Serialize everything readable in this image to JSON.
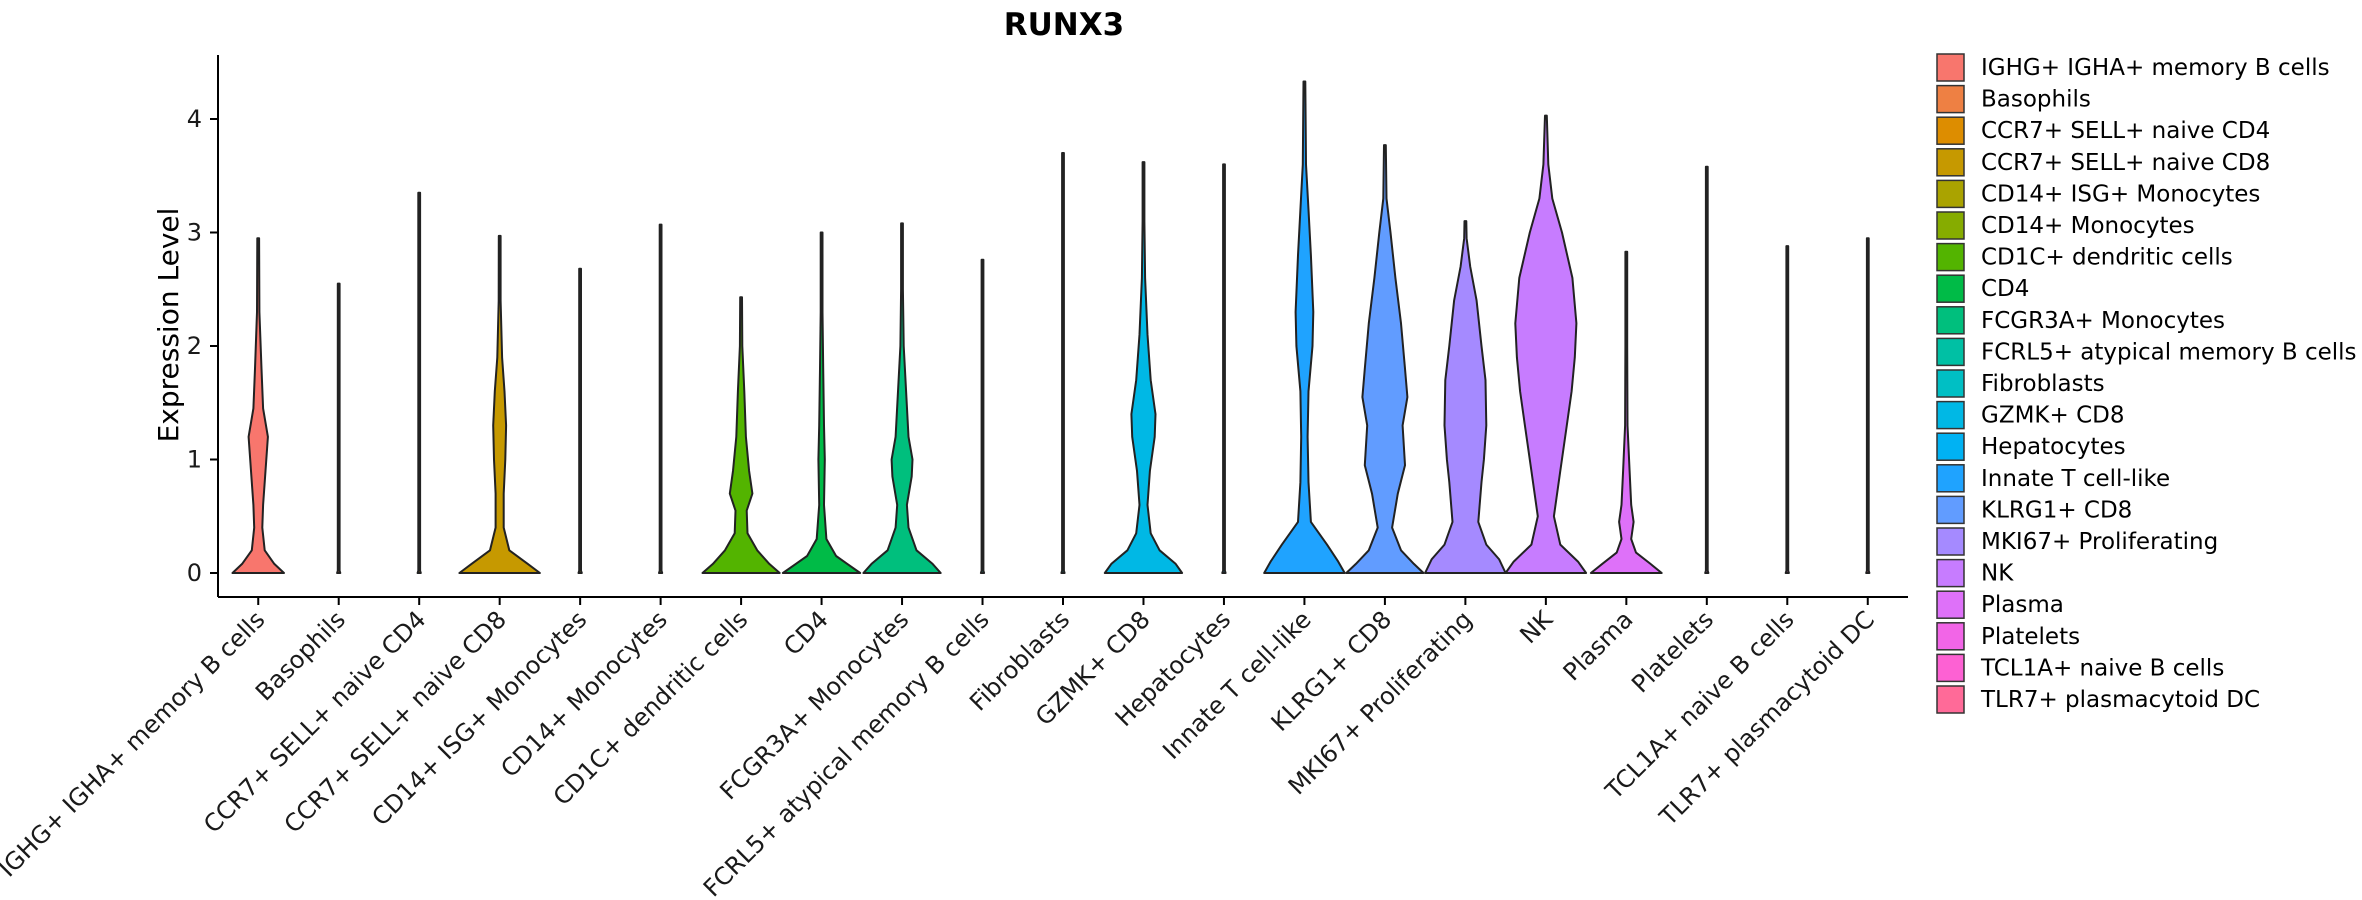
{
  "chart_data": {
    "type": "violin",
    "title": "RUNX3",
    "xlabel": "",
    "ylabel": "Expression Level",
    "ylim": [
      -0.2,
      4.55
    ],
    "yticks": [
      0,
      1,
      2,
      3,
      4
    ],
    "legend_position": "right",
    "categories": [
      " IGHG+ IGHA+ memory B cells",
      "Basophils",
      "CCR7+ SELL+ naive CD4",
      "CCR7+ SELL+ naive CD8",
      "CD14+ ISG+ Monocytes",
      "CD14+ Monocytes",
      "CD1C+ dendritic cells",
      "CD4",
      "FCGR3A+ Monocytes",
      "FCRL5+ atypical memory B cells",
      "Fibroblasts",
      "GZMK+ CD8",
      "Hepatocytes",
      "Innate T cell-like",
      "KLRG1+ CD8",
      "MKI67+ Proliferating",
      "NK",
      "Plasma",
      "Platelets",
      "TCL1A+ naive B cells",
      "TLR7+ plasmacytoid DC"
    ],
    "colors": [
      "#F8766D",
      "#EE8043",
      "#DD8D00",
      "#C69900",
      "#AAA300",
      "#86AC00",
      "#53B400",
      "#00BB47",
      "#00BF7D",
      "#00C0A4",
      "#00BFC4",
      "#00B8E5",
      "#00B2F3",
      "#1FA3FF",
      "#619CFF",
      "#A58AFF",
      "#C77CFF",
      "#DE71F9",
      "#F265E7",
      "#FD61D3",
      "#FF6A98"
    ],
    "series": [
      {
        "name": " IGHG+ IGHA+ memory B cells",
        "max": 2.95,
        "profile": [
          [
            0,
            0.32
          ],
          [
            0.08,
            0.2
          ],
          [
            0.2,
            0.08
          ],
          [
            0.4,
            0.05
          ],
          [
            0.6,
            0.06
          ],
          [
            0.9,
            0.09
          ],
          [
            1.2,
            0.12
          ],
          [
            1.45,
            0.06
          ],
          [
            1.8,
            0.04
          ],
          [
            2.3,
            0.015
          ],
          [
            2.95,
            0
          ]
        ]
      },
      {
        "name": "Basophils",
        "max": 2.55,
        "profile": [
          [
            0,
            0.02
          ],
          [
            0.02,
            0.005
          ],
          [
            2.55,
            0
          ]
        ]
      },
      {
        "name": "CCR7+ SELL+ naive CD4",
        "max": 3.35,
        "profile": [
          [
            0,
            0.02
          ],
          [
            0.02,
            0.005
          ],
          [
            3.35,
            0
          ]
        ]
      },
      {
        "name": "CCR7+ SELL+ naive CD8",
        "max": 2.97,
        "profile": [
          [
            0,
            0.5
          ],
          [
            0.08,
            0.35
          ],
          [
            0.2,
            0.12
          ],
          [
            0.4,
            0.05
          ],
          [
            0.7,
            0.05
          ],
          [
            1.0,
            0.07
          ],
          [
            1.3,
            0.08
          ],
          [
            1.6,
            0.06
          ],
          [
            1.9,
            0.03
          ],
          [
            2.4,
            0.012
          ],
          [
            2.97,
            0
          ]
        ]
      },
      {
        "name": "CD14+ ISG+ Monocytes",
        "max": 2.68,
        "profile": [
          [
            0,
            0.02
          ],
          [
            0.02,
            0.005
          ],
          [
            2.68,
            0
          ]
        ]
      },
      {
        "name": "CD14+ Monocytes",
        "max": 3.07,
        "profile": [
          [
            0,
            0.02
          ],
          [
            0.02,
            0.005
          ],
          [
            3.07,
            0
          ]
        ]
      },
      {
        "name": "CD1C+ dendritic cells",
        "max": 2.43,
        "profile": [
          [
            0,
            0.48
          ],
          [
            0.08,
            0.35
          ],
          [
            0.2,
            0.2
          ],
          [
            0.35,
            0.08
          ],
          [
            0.55,
            0.07
          ],
          [
            0.7,
            0.14
          ],
          [
            0.9,
            0.1
          ],
          [
            1.2,
            0.06
          ],
          [
            1.6,
            0.04
          ],
          [
            2.0,
            0.015
          ],
          [
            2.43,
            0
          ]
        ]
      },
      {
        "name": "CD4",
        "max": 3.0,
        "profile": [
          [
            0,
            0.48
          ],
          [
            0.08,
            0.32
          ],
          [
            0.15,
            0.18
          ],
          [
            0.3,
            0.06
          ],
          [
            0.6,
            0.03
          ],
          [
            1.0,
            0.04
          ],
          [
            1.3,
            0.03
          ],
          [
            1.8,
            0.02
          ],
          [
            2.3,
            0.01
          ],
          [
            3.0,
            0
          ]
        ]
      },
      {
        "name": "FCGR3A+ Monocytes",
        "max": 3.08,
        "profile": [
          [
            0,
            0.48
          ],
          [
            0.08,
            0.38
          ],
          [
            0.2,
            0.18
          ],
          [
            0.4,
            0.08
          ],
          [
            0.6,
            0.06
          ],
          [
            0.85,
            0.12
          ],
          [
            1.0,
            0.13
          ],
          [
            1.2,
            0.08
          ],
          [
            1.6,
            0.05
          ],
          [
            2.0,
            0.02
          ],
          [
            2.5,
            0.008
          ],
          [
            3.08,
            0
          ]
        ]
      },
      {
        "name": "FCRL5+ atypical memory B cells",
        "max": 2.76,
        "profile": [
          [
            0,
            0.02
          ],
          [
            0.02,
            0.005
          ],
          [
            2.76,
            0
          ]
        ]
      },
      {
        "name": "Fibroblasts",
        "max": 3.7,
        "profile": [
          [
            0,
            0.02
          ],
          [
            0.02,
            0.005
          ],
          [
            3.7,
            0
          ]
        ]
      },
      {
        "name": "GZMK+ CD8",
        "max": 3.62,
        "profile": [
          [
            0,
            0.48
          ],
          [
            0.08,
            0.4
          ],
          [
            0.2,
            0.2
          ],
          [
            0.35,
            0.09
          ],
          [
            0.6,
            0.05
          ],
          [
            0.9,
            0.08
          ],
          [
            1.2,
            0.14
          ],
          [
            1.4,
            0.15
          ],
          [
            1.7,
            0.09
          ],
          [
            2.1,
            0.05
          ],
          [
            2.6,
            0.02
          ],
          [
            3.1,
            0.008
          ],
          [
            3.62,
            0
          ]
        ]
      },
      {
        "name": "Hepatocytes",
        "max": 3.6,
        "profile": [
          [
            0,
            0.02
          ],
          [
            0.02,
            0.005
          ],
          [
            3.6,
            0
          ]
        ]
      },
      {
        "name": "Innate T cell-like",
        "max": 4.33,
        "profile": [
          [
            0,
            0.5
          ],
          [
            0.1,
            0.42
          ],
          [
            0.25,
            0.28
          ],
          [
            0.45,
            0.08
          ],
          [
            0.8,
            0.05
          ],
          [
            1.2,
            0.04
          ],
          [
            1.6,
            0.05
          ],
          [
            2.0,
            0.1
          ],
          [
            2.3,
            0.11
          ],
          [
            2.8,
            0.08
          ],
          [
            3.2,
            0.05
          ],
          [
            3.6,
            0.02
          ],
          [
            4.33,
            0
          ]
        ]
      },
      {
        "name": "KLRG1+ CD8",
        "max": 3.77,
        "profile": [
          [
            0,
            0.48
          ],
          [
            0.08,
            0.36
          ],
          [
            0.2,
            0.2
          ],
          [
            0.4,
            0.09
          ],
          [
            0.7,
            0.16
          ],
          [
            0.95,
            0.25
          ],
          [
            1.3,
            0.22
          ],
          [
            1.55,
            0.28
          ],
          [
            1.8,
            0.25
          ],
          [
            2.2,
            0.2
          ],
          [
            2.6,
            0.13
          ],
          [
            3.0,
            0.07
          ],
          [
            3.3,
            0.02
          ],
          [
            3.77,
            0
          ]
        ]
      },
      {
        "name": "MKI67+ Proliferating",
        "max": 3.1,
        "profile": [
          [
            0,
            0.5
          ],
          [
            0.12,
            0.42
          ],
          [
            0.25,
            0.26
          ],
          [
            0.45,
            0.16
          ],
          [
            0.8,
            0.2
          ],
          [
            1.0,
            0.23
          ],
          [
            1.3,
            0.26
          ],
          [
            1.7,
            0.25
          ],
          [
            2.0,
            0.2
          ],
          [
            2.4,
            0.14
          ],
          [
            2.7,
            0.06
          ],
          [
            2.95,
            0.015
          ],
          [
            3.1,
            0
          ]
        ]
      },
      {
        "name": "NK",
        "max": 4.03,
        "profile": [
          [
            0,
            0.5
          ],
          [
            0.1,
            0.4
          ],
          [
            0.25,
            0.18
          ],
          [
            0.5,
            0.1
          ],
          [
            0.9,
            0.18
          ],
          [
            1.3,
            0.26
          ],
          [
            1.6,
            0.32
          ],
          [
            1.9,
            0.36
          ],
          [
            2.2,
            0.38
          ],
          [
            2.6,
            0.33
          ],
          [
            3.0,
            0.2
          ],
          [
            3.3,
            0.08
          ],
          [
            3.6,
            0.03
          ],
          [
            4.03,
            0
          ]
        ]
      },
      {
        "name": "Plasma",
        "max": 2.83,
        "profile": [
          [
            0,
            0.44
          ],
          [
            0.08,
            0.3
          ],
          [
            0.18,
            0.12
          ],
          [
            0.3,
            0.06
          ],
          [
            0.45,
            0.09
          ],
          [
            0.6,
            0.06
          ],
          [
            0.9,
            0.04
          ],
          [
            1.3,
            0.015
          ],
          [
            2.0,
            0.005
          ],
          [
            2.83,
            0
          ]
        ]
      },
      {
        "name": "Platelets",
        "max": 3.58,
        "profile": [
          [
            0,
            0.02
          ],
          [
            0.02,
            0.005
          ],
          [
            3.58,
            0
          ]
        ]
      },
      {
        "name": "TCL1A+ naive B cells",
        "max": 2.88,
        "profile": [
          [
            0,
            0.02
          ],
          [
            0.02,
            0.005
          ],
          [
            2.88,
            0
          ]
        ]
      },
      {
        "name": "TLR7+ plasmacytoid DC",
        "max": 2.95,
        "profile": [
          [
            0,
            0.02
          ],
          [
            0.02,
            0.005
          ],
          [
            2.95,
            0
          ]
        ]
      }
    ]
  }
}
